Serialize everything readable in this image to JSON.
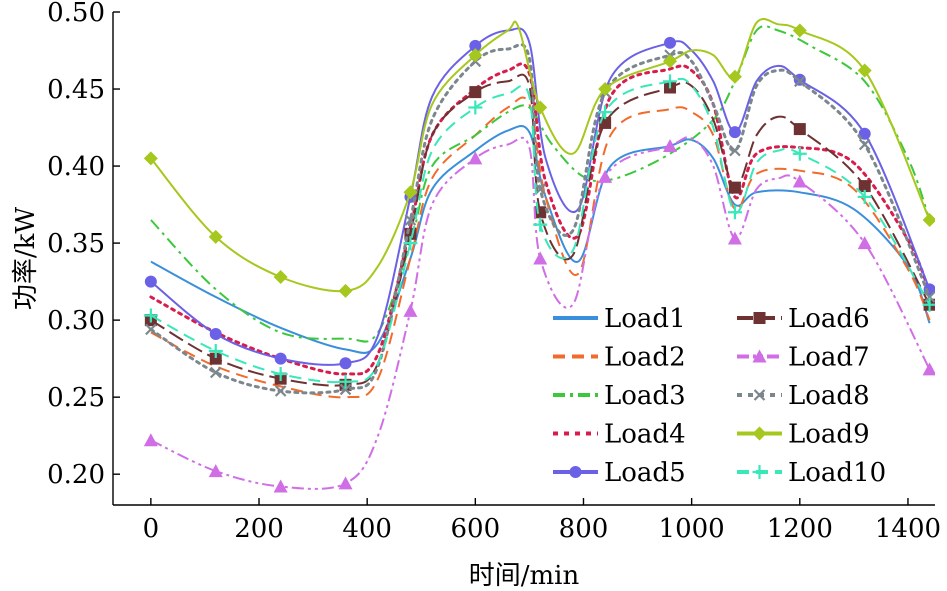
{
  "chart_data": {
    "type": "line",
    "title": "",
    "xlabel": "时间/min",
    "ylabel": "功率/kW",
    "xlim": [
      -70,
      1450
    ],
    "ylim": [
      0.18,
      0.5
    ],
    "xticks": [
      0,
      200,
      400,
      600,
      800,
      1000,
      1200,
      1400
    ],
    "yticks": [
      0.2,
      0.25,
      0.3,
      0.35,
      0.4,
      0.45,
      0.5
    ],
    "xtick_labels": [
      "0",
      "200",
      "400",
      "600",
      "800",
      "1000",
      "1200",
      "1400"
    ],
    "ytick_labels": [
      "0.20",
      "0.25",
      "0.30",
      "0.35",
      "0.40",
      "0.45",
      "0.50"
    ],
    "grid": false,
    "legend": "bottom-right, 2 columns",
    "series": [
      {
        "name": "Load1",
        "color": "#3a8fdc",
        "dash": "solid",
        "marker": "none",
        "x": [
          0,
          120,
          240,
          360,
          420,
          480,
          520,
          600,
          660,
          700,
          730,
          790,
          850,
          960,
          1000,
          1040,
          1080,
          1120,
          1200,
          1300,
          1400,
          1440
        ],
        "y": [
          0.338,
          0.315,
          0.295,
          0.281,
          0.285,
          0.34,
          0.385,
          0.41,
          0.423,
          0.422,
          0.38,
          0.338,
          0.4,
          0.413,
          0.417,
          0.405,
          0.375,
          0.383,
          0.383,
          0.372,
          0.335,
          0.298
        ]
      },
      {
        "name": "Load2",
        "color": "#f26b2c",
        "dash": "dash",
        "marker": "none",
        "x": [
          0,
          120,
          240,
          360,
          420,
          480,
          520,
          600,
          660,
          700,
          730,
          790,
          850,
          960,
          1000,
          1040,
          1080,
          1120,
          1200,
          1300,
          1400,
          1440
        ],
        "y": [
          0.292,
          0.27,
          0.257,
          0.25,
          0.262,
          0.34,
          0.392,
          0.42,
          0.438,
          0.44,
          0.38,
          0.33,
          0.42,
          0.437,
          0.435,
          0.42,
          0.372,
          0.395,
          0.397,
          0.385,
          0.333,
          0.3
        ]
      },
      {
        "name": "Load3",
        "color": "#3cc83c",
        "dash": "dashdot",
        "marker": "none",
        "x": [
          0,
          120,
          240,
          360,
          420,
          480,
          520,
          600,
          660,
          700,
          740,
          800,
          860,
          960,
          1040,
          1080,
          1120,
          1160,
          1220,
          1320,
          1400,
          1440
        ],
        "y": [
          0.365,
          0.32,
          0.292,
          0.288,
          0.292,
          0.35,
          0.4,
          0.42,
          0.435,
          0.438,
          0.415,
          0.393,
          0.392,
          0.408,
          0.43,
          0.455,
          0.488,
          0.488,
          0.478,
          0.455,
          0.405,
          0.365
        ]
      },
      {
        "name": "Load4",
        "color": "#d81c4c",
        "dash": "dot",
        "marker": "none",
        "x": [
          0,
          120,
          240,
          360,
          420,
          480,
          520,
          600,
          660,
          700,
          730,
          790,
          850,
          960,
          1000,
          1040,
          1080,
          1120,
          1200,
          1300,
          1400,
          1440
        ],
        "y": [
          0.315,
          0.292,
          0.275,
          0.265,
          0.278,
          0.36,
          0.42,
          0.45,
          0.462,
          0.46,
          0.39,
          0.355,
          0.445,
          0.463,
          0.462,
          0.44,
          0.38,
          0.408,
          0.412,
          0.402,
          0.352,
          0.318
        ]
      },
      {
        "name": "Load5",
        "color": "#6a61e6",
        "dash": "solid",
        "marker": "circle",
        "x": [
          0,
          120,
          240,
          360,
          420,
          480,
          520,
          600,
          660,
          700,
          730,
          790,
          850,
          960,
          1000,
          1040,
          1080,
          1120,
          1160,
          1200,
          1320,
          1440
        ],
        "y": [
          0.325,
          0.291,
          0.275,
          0.272,
          0.29,
          0.38,
          0.445,
          0.478,
          0.488,
          0.48,
          0.405,
          0.372,
          0.457,
          0.48,
          0.475,
          0.455,
          0.422,
          0.455,
          0.465,
          0.456,
          0.421,
          0.32
        ]
      },
      {
        "name": "Load6",
        "color": "#6e3232",
        "dash": "longdash",
        "marker": "square",
        "x": [
          0,
          120,
          240,
          360,
          420,
          480,
          520,
          600,
          660,
          700,
          720,
          780,
          840,
          960,
          1000,
          1040,
          1080,
          1120,
          1160,
          1200,
          1320,
          1440
        ],
        "y": [
          0.3,
          0.275,
          0.262,
          0.258,
          0.272,
          0.356,
          0.42,
          0.448,
          0.455,
          0.452,
          0.37,
          0.342,
          0.428,
          0.451,
          0.452,
          0.43,
          0.386,
          0.42,
          0.432,
          0.424,
          0.387,
          0.31
        ]
      },
      {
        "name": "Load7",
        "color": "#d06ee6",
        "dash": "dashdotdot",
        "marker": "triangle",
        "x": [
          0,
          120,
          240,
          360,
          420,
          480,
          520,
          600,
          660,
          700,
          720,
          780,
          840,
          960,
          1000,
          1040,
          1080,
          1120,
          1160,
          1200,
          1320,
          1440
        ],
        "y": [
          0.222,
          0.202,
          0.192,
          0.194,
          0.225,
          0.306,
          0.375,
          0.405,
          0.414,
          0.412,
          0.34,
          0.31,
          0.393,
          0.413,
          0.418,
          0.4,
          0.353,
          0.385,
          0.392,
          0.39,
          0.35,
          0.268
        ]
      },
      {
        "name": "Load8",
        "color": "#7b878c",
        "dash": "dot",
        "marker": "x",
        "x": [
          0,
          120,
          240,
          360,
          420,
          480,
          520,
          600,
          660,
          700,
          720,
          780,
          840,
          960,
          1000,
          1040,
          1080,
          1120,
          1160,
          1200,
          1320,
          1440
        ],
        "y": [
          0.294,
          0.266,
          0.254,
          0.255,
          0.27,
          0.365,
          0.43,
          0.468,
          0.476,
          0.47,
          0.385,
          0.358,
          0.448,
          0.472,
          0.468,
          0.44,
          0.41,
          0.452,
          0.462,
          0.455,
          0.414,
          0.315
        ]
      },
      {
        "name": "Load9",
        "color": "#a6c81e",
        "dash": "solid",
        "marker": "diamond",
        "x": [
          0,
          120,
          240,
          360,
          420,
          480,
          520,
          600,
          660,
          680,
          720,
          780,
          840,
          960,
          1000,
          1040,
          1080,
          1120,
          1160,
          1200,
          1320,
          1440
        ],
        "y": [
          0.405,
          0.354,
          0.328,
          0.319,
          0.335,
          0.383,
          0.44,
          0.472,
          0.488,
          0.49,
          0.438,
          0.408,
          0.45,
          0.468,
          0.475,
          0.472,
          0.458,
          0.493,
          0.492,
          0.488,
          0.462,
          0.365
        ]
      },
      {
        "name": "Load10",
        "color": "#38e8b8",
        "dash": "dash",
        "marker": "plus",
        "x": [
          0,
          120,
          240,
          360,
          420,
          480,
          520,
          600,
          660,
          700,
          720,
          780,
          840,
          960,
          1000,
          1040,
          1080,
          1120,
          1160,
          1200,
          1320,
          1440
        ],
        "y": [
          0.303,
          0.28,
          0.265,
          0.26,
          0.272,
          0.35,
          0.41,
          0.438,
          0.447,
          0.445,
          0.362,
          0.345,
          0.435,
          0.455,
          0.452,
          0.425,
          0.37,
          0.402,
          0.41,
          0.408,
          0.38,
          0.31
        ]
      }
    ]
  }
}
